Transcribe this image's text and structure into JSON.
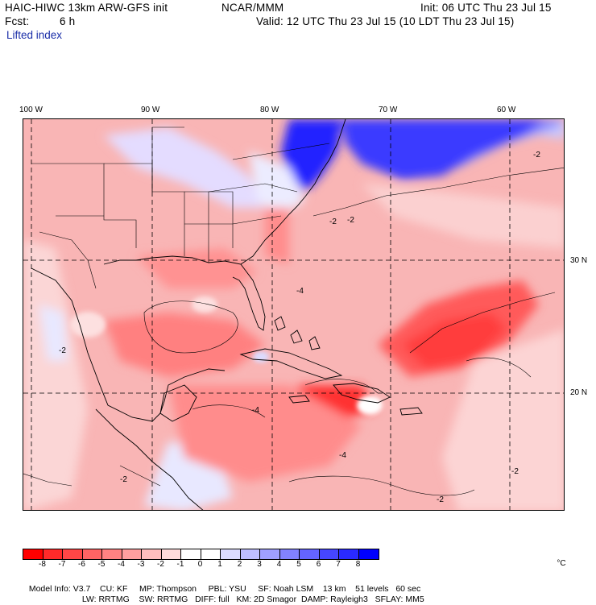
{
  "header": {
    "model_title": "HAIC-HIWC 13km ARW-GFS init",
    "org": "NCAR/MMM",
    "init": "Init: 06 UTC Thu 23 Jul 15",
    "fcst_label": "Fcst:",
    "fcst_value": "6 h",
    "valid": "Valid: 12 UTC Thu 23 Jul 15 (10 LDT Thu 23 Jul 15)",
    "field": "Lifted index"
  },
  "map": {
    "lon_labels": [
      "100 W",
      "90 W",
      "80 W",
      "70 W",
      "60 W"
    ],
    "lat_labels": [
      "30 N",
      "20 N"
    ],
    "contour_labels": [
      "-2",
      "-2",
      "-2",
      "-4",
      "-4",
      "-2",
      "-2",
      "-2",
      "-4",
      "-2"
    ]
  },
  "colorbar": {
    "unit": "°C",
    "colors": [
      "#ff0000",
      "#ff2a2a",
      "#ff4646",
      "#ff6464",
      "#ff8282",
      "#ffa0a0",
      "#ffbebe",
      "#ffdcdc",
      "#ffffff",
      "#ffffff",
      "#dcdcff",
      "#bebeff",
      "#a0a0ff",
      "#8282ff",
      "#6464ff",
      "#4646ff",
      "#2a2aff",
      "#0000ff"
    ],
    "labels": [
      "-8",
      "-7",
      "-6",
      "-5",
      "-4",
      "-3",
      "-2",
      "-1",
      "0",
      "1",
      "2",
      "3",
      "4",
      "5",
      "6",
      "7",
      "8"
    ]
  },
  "model_info": {
    "line1": [
      "Model Info: V3.7",
      "CU: KF",
      "MP: Thompson",
      "PBL: YSU",
      "SF: Noah LSM",
      "13 km",
      "51 levels",
      "60 sec"
    ],
    "line2": [
      "LW: RRTMG",
      "SW: RRTMG",
      "DIFF: full",
      "KM: 2D Smagor",
      "DAMP: Rayleigh3",
      "SFLAY: MM5"
    ]
  }
}
